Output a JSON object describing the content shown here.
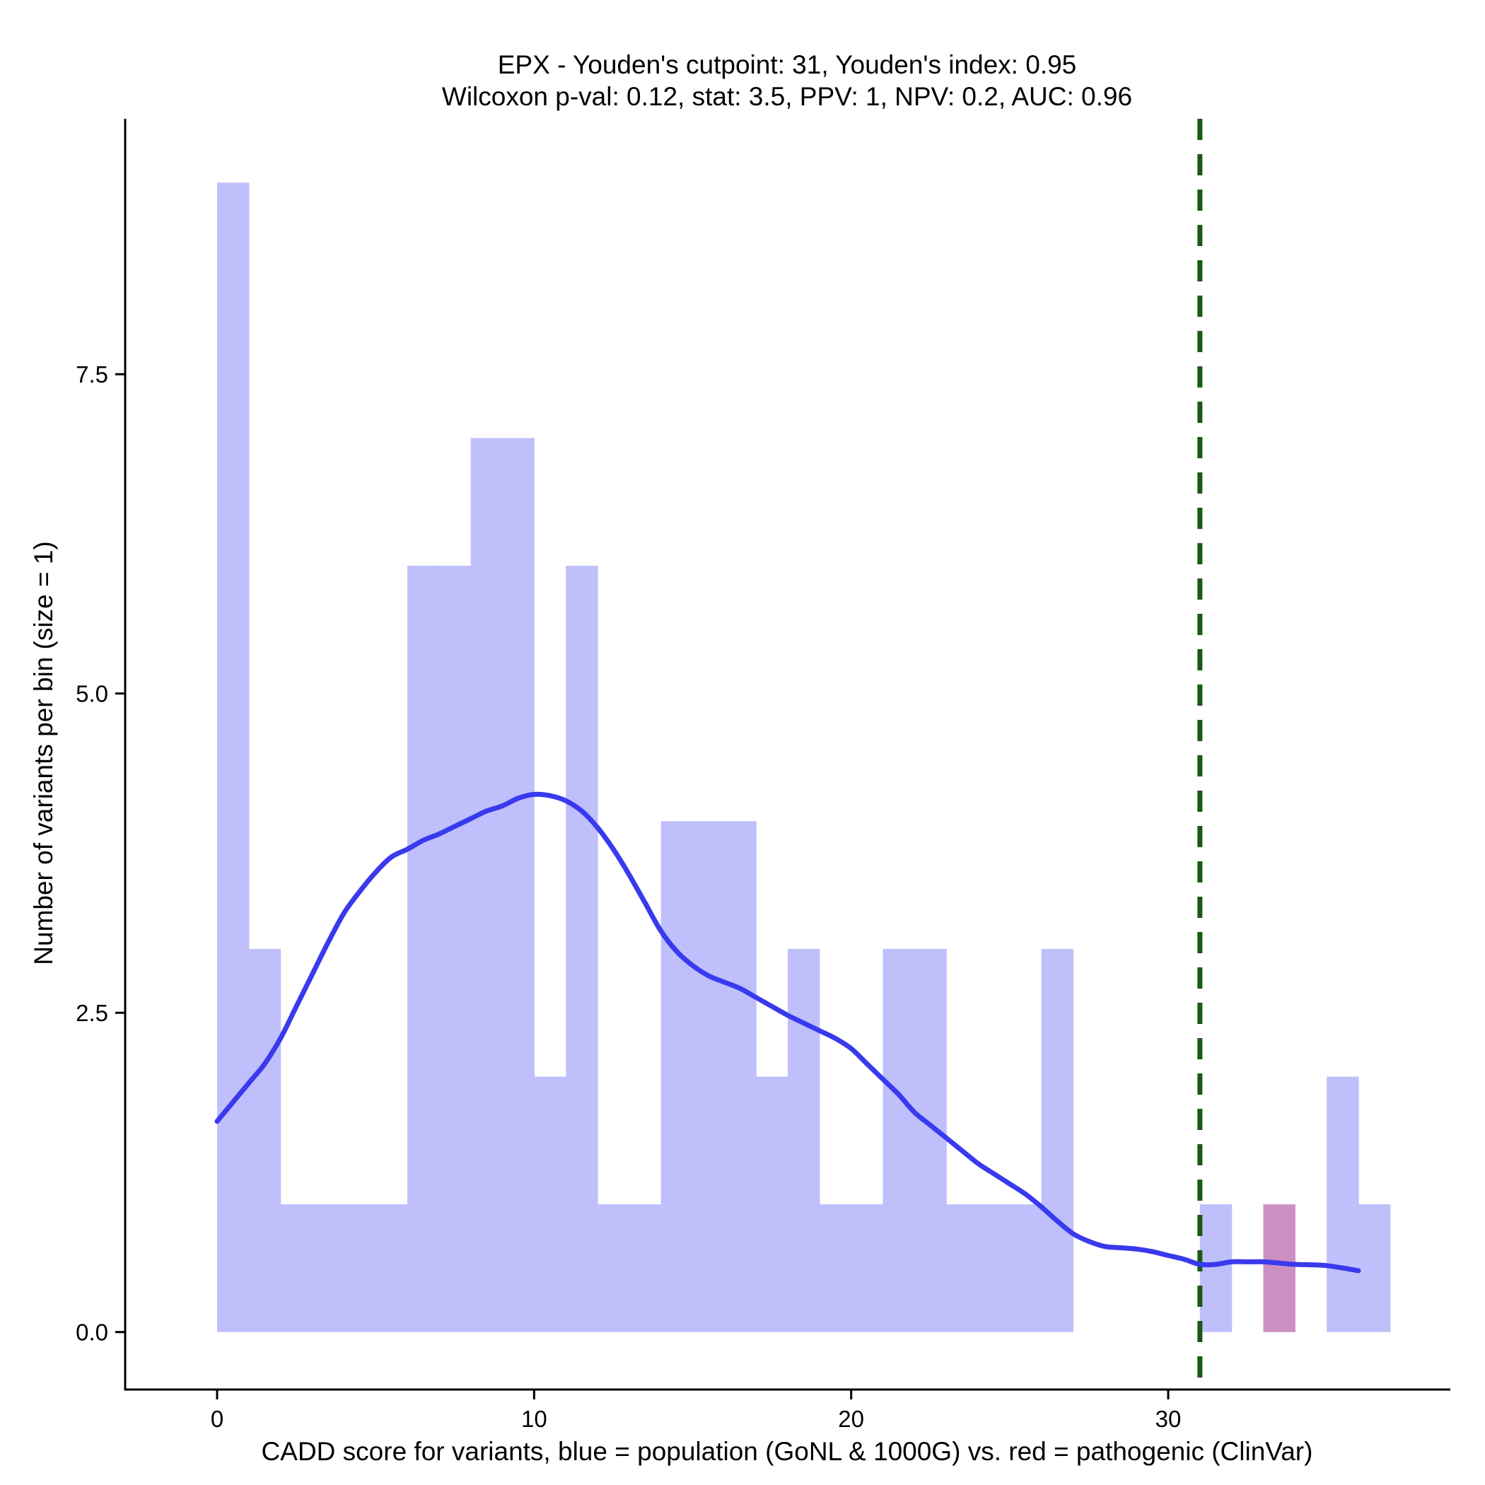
{
  "chart_data": {
    "type": "histogram",
    "title": "EPX - Youden's cutpoint: 31, Youden's index: 0.95",
    "subtitle": "Wilcoxon p-val: 0.12, stat: 3.5, PPV: 1, NPV: 0.2, AUC: 0.96",
    "xlabel": "CADD score for variants, blue = population (GoNL & 1000G) vs. red = pathogenic (ClinVar)",
    "ylabel": "Number of variants per bin (size = 1)",
    "xlim": [
      -2.9,
      38.9
    ],
    "ylim": [
      -0.45,
      9.5
    ],
    "x_ticks": [
      0,
      10,
      20,
      30
    ],
    "x_tick_labels": [
      "0",
      "10",
      "20",
      "30"
    ],
    "y_ticks": [
      0.0,
      2.5,
      5.0,
      7.5
    ],
    "y_tick_labels": [
      "0.0",
      "2.5",
      "5.0",
      "7.5"
    ],
    "bin_width": 1,
    "series": [
      {
        "name": "population (GoNL & 1000G)",
        "color": "#bfbffb",
        "bin_starts": [
          0,
          1,
          2,
          3,
          4,
          5,
          6,
          7,
          8,
          9,
          10,
          11,
          12,
          13,
          14,
          15,
          16,
          17,
          18,
          19,
          20,
          21,
          22,
          23,
          24,
          25,
          26,
          27,
          28,
          29,
          30,
          31,
          32,
          33,
          34,
          35,
          36
        ],
        "values": [
          9,
          3,
          1,
          1,
          1,
          1,
          6,
          6,
          7,
          7,
          2,
          6,
          1,
          1,
          4,
          4,
          4,
          2,
          3,
          1,
          1,
          3,
          3,
          1,
          1,
          1,
          3,
          0,
          0,
          0,
          0,
          1,
          0,
          0,
          0,
          2,
          1
        ]
      },
      {
        "name": "pathogenic (ClinVar)",
        "color": "#cc8fc2",
        "bin_starts": [
          33
        ],
        "values": [
          1
        ]
      }
    ],
    "density_line": {
      "name": "population density (scaled)",
      "color": "#3939ee",
      "x": [
        0,
        1,
        1.5,
        2,
        2.5,
        3,
        3.5,
        4,
        4.5,
        5,
        5.5,
        6,
        6.5,
        7,
        7.5,
        8,
        8.5,
        9,
        9.5,
        10,
        10.5,
        11,
        11.5,
        12,
        12.5,
        13,
        13.5,
        14,
        14.5,
        15,
        15.5,
        16,
        16.5,
        17,
        17.5,
        18,
        18.5,
        19,
        19.5,
        20,
        20.5,
        21,
        21.5,
        22,
        22.5,
        23,
        23.5,
        24,
        24.5,
        25,
        25.5,
        26,
        26.5,
        27,
        27.5,
        28,
        28.5,
        29,
        29.5,
        30,
        30.5,
        31,
        31.5,
        32,
        32.5,
        33,
        33.5,
        34,
        35,
        36
      ],
      "y": [
        1.65,
        1.95,
        2.1,
        2.3,
        2.55,
        2.8,
        3.05,
        3.28,
        3.45,
        3.6,
        3.72,
        3.78,
        3.85,
        3.9,
        3.96,
        4.02,
        4.08,
        4.12,
        4.18,
        4.21,
        4.2,
        4.16,
        4.08,
        3.95,
        3.78,
        3.58,
        3.36,
        3.14,
        2.98,
        2.87,
        2.79,
        2.74,
        2.69,
        2.62,
        2.55,
        2.48,
        2.42,
        2.36,
        2.3,
        2.22,
        2.1,
        1.98,
        1.86,
        1.72,
        1.62,
        1.52,
        1.42,
        1.32,
        1.24,
        1.16,
        1.08,
        0.98,
        0.87,
        0.77,
        0.71,
        0.67,
        0.66,
        0.65,
        0.63,
        0.6,
        0.57,
        0.53,
        0.53,
        0.55,
        0.55,
        0.55,
        0.54,
        0.53,
        0.52,
        0.48
      ]
    },
    "cutpoint_line": {
      "x": 31,
      "color": "#1a5a12",
      "style": "dashed",
      "label": "Youden's cutpoint"
    },
    "grid": false,
    "legend": "none"
  }
}
